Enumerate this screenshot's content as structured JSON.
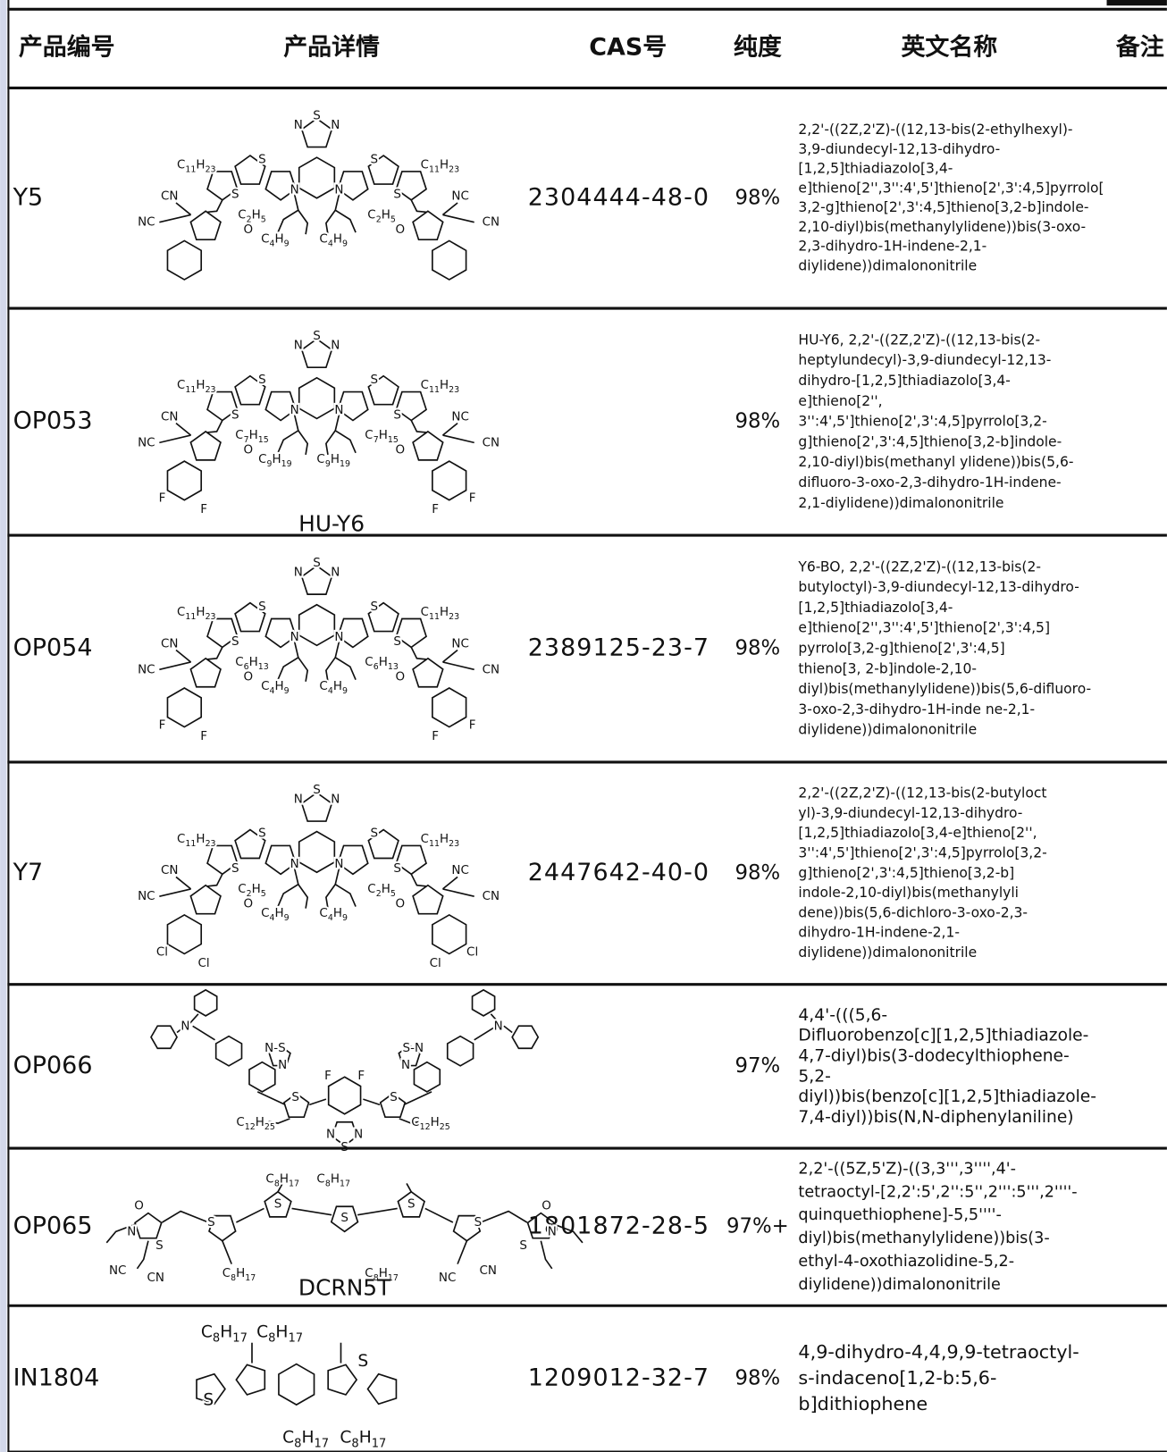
{
  "header": {
    "columns": [
      "产品编号",
      "产品详情",
      "CAS号",
      "纯度",
      "英文名称",
      "备注"
    ]
  },
  "rows": [
    {
      "code": "Y5",
      "structure": {
        "labels": [
          "N",
          "S",
          "N",
          "S",
          "S",
          "S",
          "S",
          "N",
          "N",
          "C11H23",
          "C11H23",
          "CN",
          "NC",
          "NC",
          "CN",
          "C2H5",
          "C4H9",
          "C4H9",
          "C2H5",
          "O",
          "O"
        ]
      },
      "cas": "2304444-48-0",
      "purity": "98%",
      "name": [
        "2,2'-((2Z,2'Z)-((12,13-bis(2-ethylhexyl)-",
        "3,9-diundecyl-12,13-dihydro-",
        "[1,2,5]thiadiazolo[3,4-",
        "e]thieno[2'',3'':4',5']thieno[2',3':4,5]pyrrolo[",
        "3,2-g]thieno[2',3':4,5]thieno[3,2-b]indole-",
        "2,10-diyl)bis(methanylylidene))bis(3-oxo-",
        "2,3-dihydro-1H-indene-2,1-",
        "diylidene))dimalononitrile"
      ]
    },
    {
      "code": "OP053",
      "structure": {
        "labels": [
          "N",
          "S",
          "N",
          "S",
          "S",
          "S",
          "S",
          "N",
          "N",
          "C11H23",
          "C11H23",
          "CN",
          "NC",
          "NC",
          "CN",
          "C7H15",
          "C9H19",
          "C9H19",
          "C7H15",
          "O",
          "O",
          "F",
          "F",
          "F",
          "F"
        ],
        "caption": "HU-Y6"
      },
      "purity": "98%",
      "name": [
        "HU-Y6, 2,2'-((2Z,2'Z)-((12,13-bis(2-",
        "heptylundecyl)-3,9-diundecyl-12,13-",
        "dihydro-[1,2,5]thiadiazolo[3,4-",
        "e]thieno[2'',",
        "3'':4',5']thieno[2',3':4,5]pyrrolo[3,2-",
        "g]thieno[2',3':4,5]thieno[3,2-b]indole-",
        "2,10-diyl)bis(methanyl ylidene))bis(5,6-",
        "difluoro-3-oxo-2,3-dihydro-1H-indene-",
        "2,1-diylidene))dimalononitrile"
      ]
    },
    {
      "code": "OP054",
      "structure": {
        "labels": [
          "N",
          "S",
          "N",
          "S",
          "S",
          "S",
          "S",
          "N",
          "N",
          "C11H23",
          "C11H23",
          "CN",
          "NC",
          "NC",
          "CN",
          "C6H13",
          "C4H9",
          "C4H9",
          "C6H13",
          "O",
          "O",
          "F",
          "F",
          "F",
          "F"
        ]
      },
      "cas": "2389125-23-7",
      "purity": "98%",
      "name": [
        "Y6-BO, 2,2'-((2Z,2'Z)-((12,13-bis(2-",
        "butyloctyl)-3,9-diundecyl-12,13-dihydro-",
        "[1,2,5]thiadiazolo[3,4-",
        "e]thieno[2'',3'':4',5']thieno[2',3':4,5]",
        "pyrrolo[3,2-g]thieno[2',3':4,5]",
        "thieno[3, 2-b]indole-2,10-",
        "diyl)bis(methanylylidene))bis(5,6-difluoro-",
        "3-oxo-2,3-dihydro-1H-inde ne-2,1-",
        "diylidene))dimalononitrile"
      ]
    },
    {
      "code": "Y7",
      "structure": {
        "labels": [
          "N",
          "S",
          "N",
          "S",
          "S",
          "S",
          "S",
          "N",
          "N",
          "C11H23",
          "C11H23",
          "CN",
          "NC",
          "NC",
          "CN",
          "C2H5",
          "C4H9",
          "C4H9",
          "C2H5",
          "O",
          "O",
          "Cl",
          "Cl",
          "Cl",
          "Cl"
        ]
      },
      "cas": "2447642-40-0",
      "purity": "98%",
      "name": [
        "2,2'-((2Z,2'Z)-((12,13-bis(2-butyloct",
        "yl)-3,9-diundecyl-12,13-dihydro-",
        "[1,2,5]thiadiazolo[3,4-e]thieno[2'',",
        "3'':4',5']thieno[2',3':4,5]pyrrolo[3,2-",
        "g]thieno[2',3':4,5]thieno[3,2-b]",
        "indole-2,10-diyl)bis(methanylyli",
        "dene))bis(5,6-dichloro-3-oxo-2,3-",
        "dihydro-1H-indene-2,1-",
        "diylidene))dimalononitrile"
      ]
    },
    {
      "code": "OP066",
      "structure": {
        "labels": [
          "N",
          "N",
          "N-S",
          "N",
          "S-N",
          "N",
          "F",
          "F",
          "S",
          "S",
          "N",
          "S",
          "N",
          "C12H25",
          "C12H25"
        ]
      },
      "purity": "97%",
      "name": [
        "4,4'-(((5,6-",
        "Difluorobenzo[c][1,2,5]thiadiazole-",
        "4,7-diyl)bis(3-dodecylthiophene-",
        "5,2-",
        "diyl))bis(benzo[c][1,2,5]thiadiazole-",
        "7,4-diyl))bis(N,N-diphenylaniline)"
      ]
    },
    {
      "code": "OP065",
      "structure": {
        "labels": [
          "C8H17",
          "C8H17",
          "O",
          "N",
          "S",
          "S",
          "S",
          "S",
          "S",
          "S",
          "O",
          "N",
          "S",
          "C8H17",
          "C8H17",
          "NC",
          "CN",
          "NC",
          "CN"
        ],
        "caption": "DCRN5T"
      },
      "cas": "1801872-28-5",
      "purity": "97%+",
      "name": [
        "2,2'-((5Z,5'Z)-((3,3''',3'''',4'-",
        "tetraoctyl-[2,2':5',2'':5'',2''':5''',2''''-",
        "quinquethiophene]-5,5''''-",
        "diyl)bis(methanylylidene))bis(3-",
        "ethyl-4-oxothiazolidine-5,2-",
        "diylidene))dimalononitrile"
      ]
    },
    {
      "code": "IN1804",
      "structure": {
        "labels": [
          "C8H17",
          "C8H17",
          "S",
          "S",
          "C8H17",
          "C8H17"
        ]
      },
      "cas": "1209012-32-7",
      "purity": "98%",
      "name": [
        "4,9-dihydro-4,4,9,9-tetraoctyl-",
        "s-indaceno[1,2-b:5,6-",
        "b]dithiophene"
      ]
    }
  ]
}
